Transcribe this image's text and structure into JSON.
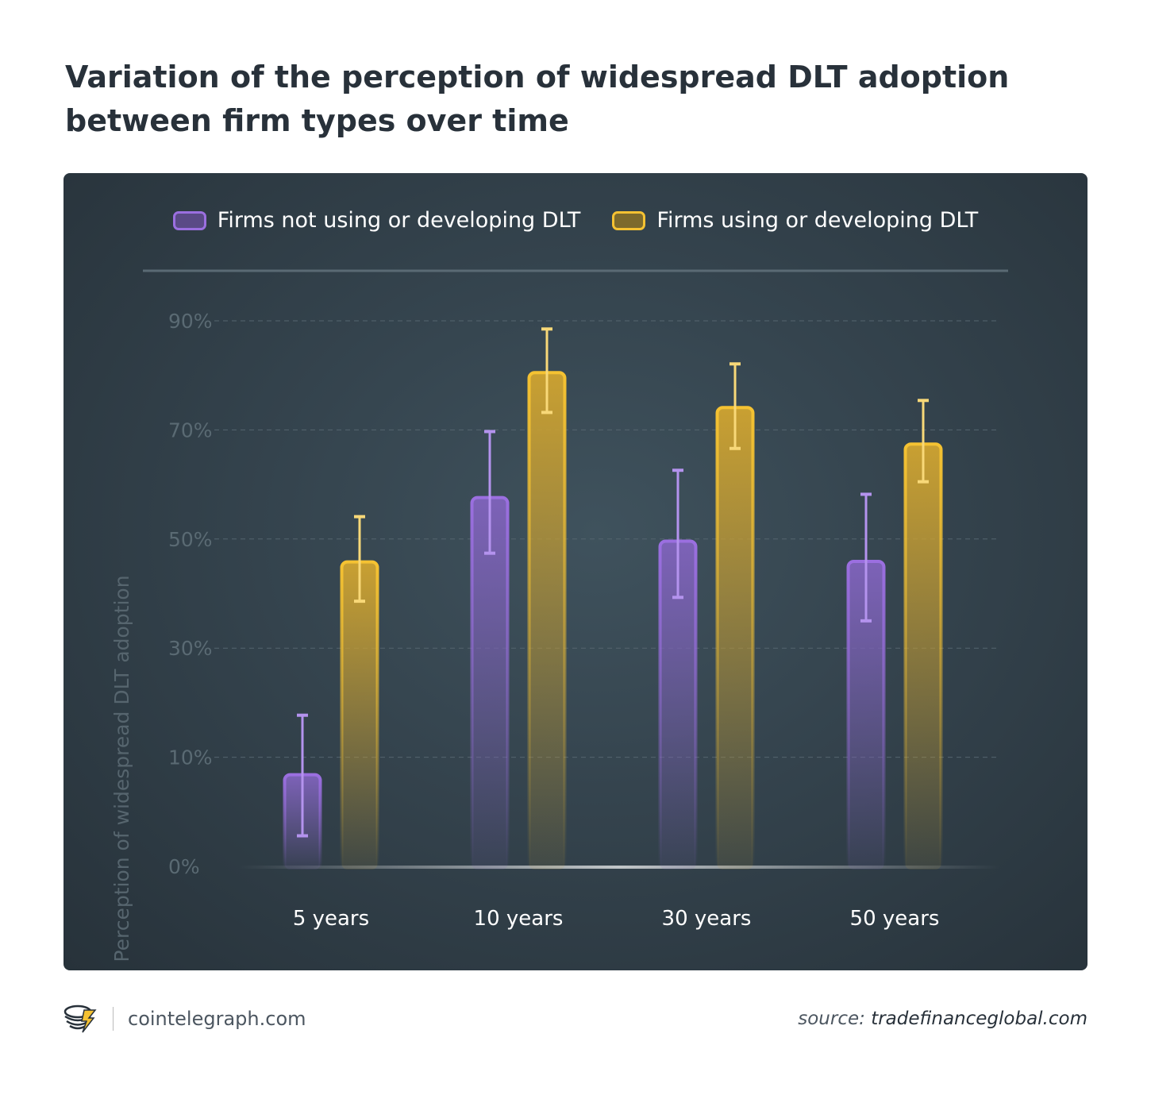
{
  "title": "Variation of the perception of widespread DLT adoption between firm types over time",
  "chart_data": {
    "type": "bar",
    "title": "Variation of the perception of widespread DLT adoption between firm types over time",
    "ylabel": "Perception of widespread DLT adoption",
    "xlabel": "",
    "categories": [
      "5 years",
      "10 years",
      "30 years",
      "50 years"
    ],
    "y_ticks": [
      "0%",
      "10%",
      "30%",
      "50%",
      "70%",
      "90%"
    ],
    "y_tick_values": [
      0,
      10,
      30,
      50,
      70,
      90
    ],
    "ylim": [
      0,
      90
    ],
    "grid": true,
    "legend_position": "top",
    "series": [
      {
        "name": "Firms not using or developing DLT",
        "color": "#9b6fe0",
        "values": [
          8.4,
          57.6,
          49.6,
          45.9
        ],
        "error_low": [
          2.8,
          47.4,
          39.3,
          35.0
        ],
        "error_high": [
          17.7,
          69.7,
          62.6,
          58.2
        ]
      },
      {
        "name": "Firms using or developing DLT",
        "color": "#f5c232",
        "values": [
          45.8,
          80.5,
          74.1,
          67.4
        ],
        "error_low": [
          38.6,
          73.2,
          66.6,
          60.5
        ],
        "error_high": [
          54.1,
          88.5,
          82.1,
          75.4
        ]
      }
    ]
  },
  "footer": {
    "site": "cointelegraph.com",
    "source_label": "source:",
    "source": "tradefinanceglobal.com"
  }
}
